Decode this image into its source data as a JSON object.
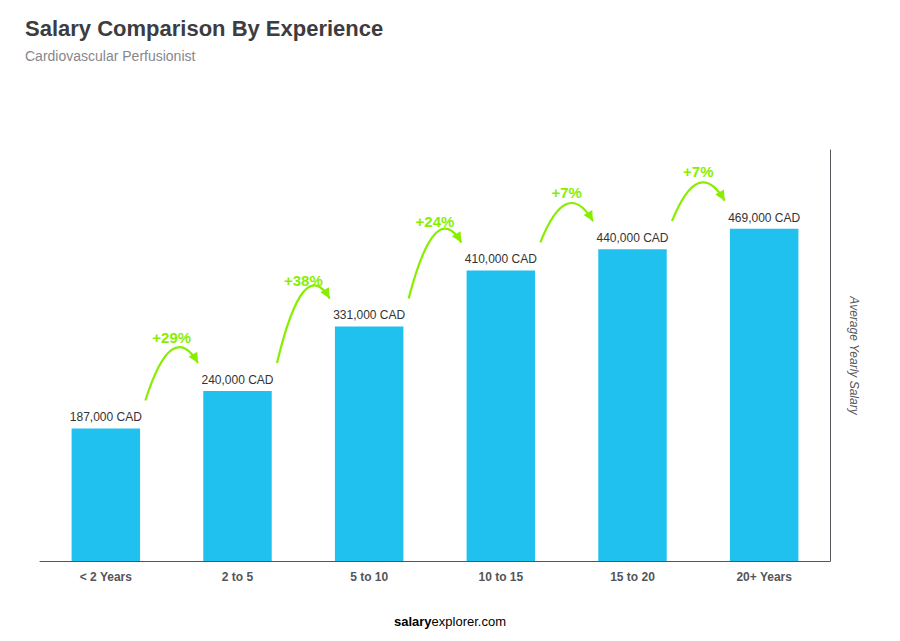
{
  "chart_data": {
    "type": "bar",
    "title": "Salary Comparison By Experience",
    "subtitle": "Cardiovascular Perfusionist",
    "categories": [
      "< 2 Years",
      "2 to 5",
      "5 to 10",
      "10 to 15",
      "15 to 20",
      "20+ Years"
    ],
    "values": [
      187000,
      240000,
      331000,
      410000,
      440000,
      469000
    ],
    "value_labels": [
      "187,000 CAD",
      "240,000 CAD",
      "331,000 CAD",
      "410,000 CAD",
      "440,000 CAD",
      "469,000 CAD"
    ],
    "data_labels": true,
    "color": "#20c0ef",
    "ylabel": "Average Yearly Salary",
    "ylim": [
      0,
      580000
    ],
    "tick_labels": "x",
    "grid": false,
    "annotations": [
      {
        "text": "+29%",
        "color": "#88ee00"
      },
      {
        "text": "+38%",
        "color": "#88ee00"
      },
      {
        "text": "+24%",
        "color": "#88ee00"
      },
      {
        "text": "+7%",
        "color": "#88ee00"
      },
      {
        "text": "+7%",
        "color": "#88ee00"
      }
    ],
    "footer": [
      "salary",
      "explorer.com"
    ]
  }
}
